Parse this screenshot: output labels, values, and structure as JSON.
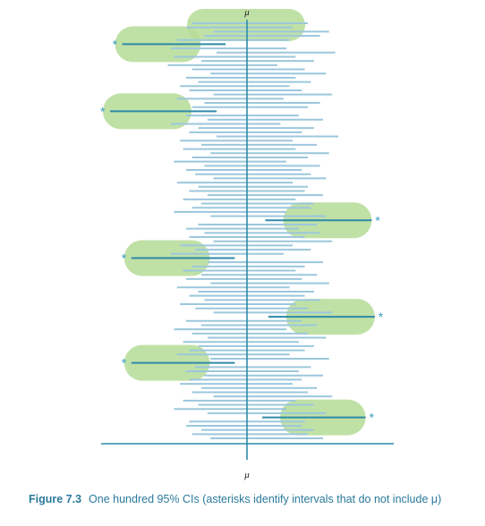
{
  "chart_data": {
    "type": "interval",
    "title": "",
    "axis_label_top": "μ",
    "axis_label_bottom": "μ",
    "caption_figure": "Figure 7.3",
    "caption_text": "One hundred 95% CIs (asterisks identify intervals that do not include μ)",
    "marker_symbol": "*",
    "true_mean": 0,
    "xlim": [
      -4.8,
      4.8
    ],
    "num_intervals": 100,
    "interval_color": "#9cc7dc",
    "excluded_interval_color": "#2e8aa8",
    "highlight_color": "#b5dc96",
    "axis_color": "#2e8aa8",
    "intervals": [
      {
        "lo": -1.8,
        "hi": 2.0
      },
      {
        "lo": -2.0,
        "hi": 1.5
      },
      {
        "lo": -1.1,
        "hi": 2.7
      },
      {
        "lo": -1.4,
        "hi": 2.4
      },
      {
        "lo": -2.3,
        "hi": 1.4
      },
      {
        "lo": -4.1,
        "hi": -0.7,
        "excluded": true
      },
      {
        "lo": -2.5,
        "hi": 1.3
      },
      {
        "lo": -1.0,
        "hi": 2.9
      },
      {
        "lo": -2.4,
        "hi": 1.6
      },
      {
        "lo": -1.5,
        "hi": 2.2
      },
      {
        "lo": -2.6,
        "hi": 1.0
      },
      {
        "lo": -1.8,
        "hi": 1.9
      },
      {
        "lo": -1.2,
        "hi": 2.6
      },
      {
        "lo": -2.0,
        "hi": 1.6
      },
      {
        "lo": -1.6,
        "hi": 2.1
      },
      {
        "lo": -2.2,
        "hi": 1.4
      },
      {
        "lo": -1.9,
        "hi": 1.8
      },
      {
        "lo": -1.1,
        "hi": 2.8
      },
      {
        "lo": -2.3,
        "hi": 1.2
      },
      {
        "lo": -1.4,
        "hi": 2.4
      },
      {
        "lo": -1.8,
        "hi": 2.0
      },
      {
        "lo": -4.5,
        "hi": -1.0,
        "excluded": true
      },
      {
        "lo": -2.0,
        "hi": 1.7
      },
      {
        "lo": -1.3,
        "hi": 2.5
      },
      {
        "lo": -2.5,
        "hi": 1.1
      },
      {
        "lo": -1.6,
        "hi": 2.2
      },
      {
        "lo": -1.9,
        "hi": 1.8
      },
      {
        "lo": -1.0,
        "hi": 3.0
      },
      {
        "lo": -2.2,
        "hi": 1.5
      },
      {
        "lo": -1.5,
        "hi": 2.3
      },
      {
        "lo": -2.1,
        "hi": 1.6
      },
      {
        "lo": -1.2,
        "hi": 2.7
      },
      {
        "lo": -1.8,
        "hi": 2.0
      },
      {
        "lo": -2.4,
        "hi": 1.3
      },
      {
        "lo": -1.4,
        "hi": 2.4
      },
      {
        "lo": -2.0,
        "hi": 1.8
      },
      {
        "lo": -1.7,
        "hi": 2.1
      },
      {
        "lo": -1.1,
        "hi": 2.6
      },
      {
        "lo": -2.3,
        "hi": 1.5
      },
      {
        "lo": -1.6,
        "hi": 2.0
      },
      {
        "lo": -1.9,
        "hi": 1.9
      },
      {
        "lo": -1.3,
        "hi": 2.5
      },
      {
        "lo": -2.1,
        "hi": 1.6
      },
      {
        "lo": -1.5,
        "hi": 2.2
      },
      {
        "lo": -1.8,
        "hi": 2.1
      },
      {
        "lo": -2.4,
        "hi": 1.3
      },
      {
        "lo": -1.2,
        "hi": 2.6
      },
      {
        "lo": 0.6,
        "hi": 4.1,
        "excluded": true
      },
      {
        "lo": -1.6,
        "hi": 2.3
      },
      {
        "lo": -2.0,
        "hi": 1.7
      },
      {
        "lo": -1.4,
        "hi": 2.4
      },
      {
        "lo": -1.9,
        "hi": 1.9
      },
      {
        "lo": -1.1,
        "hi": 2.8
      },
      {
        "lo": -2.2,
        "hi": 1.5
      },
      {
        "lo": -1.7,
        "hi": 2.1
      },
      {
        "lo": -2.5,
        "hi": 1.2
      },
      {
        "lo": -3.8,
        "hi": -0.4,
        "excluded": true
      },
      {
        "lo": -1.3,
        "hi": 2.5
      },
      {
        "lo": -1.8,
        "hi": 1.9
      },
      {
        "lo": -2.1,
        "hi": 1.6
      },
      {
        "lo": -1.5,
        "hi": 2.3
      },
      {
        "lo": -2.0,
        "hi": 1.8
      },
      {
        "lo": -1.2,
        "hi": 2.7
      },
      {
        "lo": -2.3,
        "hi": 1.4
      },
      {
        "lo": -1.6,
        "hi": 2.2
      },
      {
        "lo": -1.9,
        "hi": 1.9
      },
      {
        "lo": -1.4,
        "hi": 2.4
      },
      {
        "lo": -2.2,
        "hi": 1.6
      },
      {
        "lo": -1.7,
        "hi": 2.0
      },
      {
        "lo": -1.1,
        "hi": 2.8
      },
      {
        "lo": 0.7,
        "hi": 4.2,
        "excluded": true
      },
      {
        "lo": -2.0,
        "hi": 1.8
      },
      {
        "lo": -1.5,
        "hi": 2.3
      },
      {
        "lo": -2.4,
        "hi": 1.3
      },
      {
        "lo": -1.8,
        "hi": 2.0
      },
      {
        "lo": -1.3,
        "hi": 2.6
      },
      {
        "lo": -2.1,
        "hi": 1.7
      },
      {
        "lo": -1.6,
        "hi": 2.2
      },
      {
        "lo": -1.9,
        "hi": 1.9
      },
      {
        "lo": -2.3,
        "hi": 1.4
      },
      {
        "lo": -1.2,
        "hi": 2.7
      },
      {
        "lo": -3.8,
        "hi": -0.4,
        "excluded": true
      },
      {
        "lo": -1.7,
        "hi": 2.1
      },
      {
        "lo": -2.0,
        "hi": 1.7
      },
      {
        "lo": -1.4,
        "hi": 2.5
      },
      {
        "lo": -1.9,
        "hi": 1.8
      },
      {
        "lo": -2.2,
        "hi": 1.5
      },
      {
        "lo": -1.5,
        "hi": 2.3
      },
      {
        "lo": -1.8,
        "hi": 2.0
      },
      {
        "lo": -1.1,
        "hi": 2.8
      },
      {
        "lo": -2.1,
        "hi": 1.6
      },
      {
        "lo": -1.6,
        "hi": 2.2
      },
      {
        "lo": -2.4,
        "hi": 1.3
      },
      {
        "lo": -1.3,
        "hi": 2.6
      },
      {
        "lo": 0.5,
        "hi": 3.9,
        "excluded": true
      },
      {
        "lo": -1.9,
        "hi": 1.9
      },
      {
        "lo": -2.0,
        "hi": 1.8
      },
      {
        "lo": -1.5,
        "hi": 2.2
      },
      {
        "lo": -1.8,
        "hi": 2.0
      },
      {
        "lo": -1.2,
        "hi": 2.5
      }
    ]
  }
}
